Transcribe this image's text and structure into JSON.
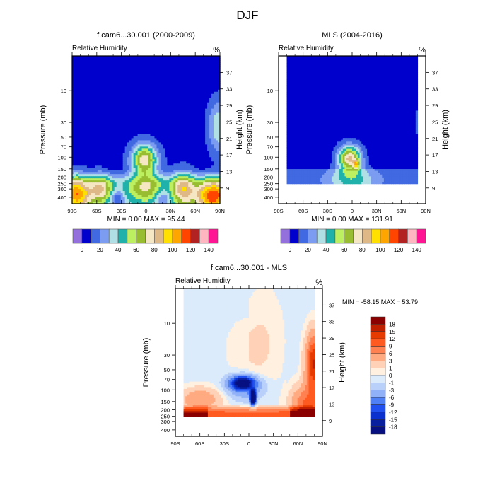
{
  "figure": {
    "title": "DJF"
  },
  "chart_data": [
    {
      "id": "model",
      "type": "heatmap",
      "title": "f.cam6...30.001 (2000-2009)",
      "left_string": "Relative Humidity",
      "units": "%",
      "xlabel": "",
      "ylabel": "Pressure (mb)",
      "ylabel_right": "Height (km)",
      "x_ticks": [
        "90S",
        "60S",
        "30S",
        "0",
        "30N",
        "60N",
        "90N"
      ],
      "x_tick_values": [
        -90,
        -60,
        -30,
        0,
        30,
        60,
        90
      ],
      "y_ticks": [
        "10",
        "30",
        "50",
        "70",
        "100",
        "150",
        "200",
        "250",
        "300",
        "400"
      ],
      "y_tick_values": [
        10,
        30,
        50,
        70,
        100,
        150,
        200,
        250,
        300,
        400
      ],
      "y_right_ticks": [
        "37",
        "33",
        "29",
        "25",
        "21",
        "17",
        "13",
        "9"
      ],
      "xlim": [
        -90,
        90
      ],
      "ylim": [
        500,
        3
      ],
      "stats": "MIN =   0.00  MAX =  95.44",
      "min": 0.0,
      "max": 95.44,
      "colorbar": {
        "labels": [
          "0",
          "20",
          "40",
          "60",
          "80",
          "100",
          "120",
          "140"
        ],
        "levels": [
          0,
          10,
          20,
          30,
          40,
          50,
          60,
          70,
          80,
          90,
          100,
          110,
          120,
          130,
          140
        ],
        "colors": [
          "#9370db",
          "#0000cd",
          "#4169e1",
          "#7b9cf0",
          "#b0e0e6",
          "#20b2aa",
          "#bdf060",
          "#98bd30",
          "#f5e6c4",
          "#deb887",
          "#ffe000",
          "#ffa500",
          "#ff4500",
          "#b22222",
          "#ffb6c1",
          "#ff1493"
        ]
      },
      "features": [
        {
          "name": "background-dry",
          "value": 5
        },
        {
          "name": "equatorial-moist-core",
          "lat": 0,
          "pressure": 100,
          "value": 75
        },
        {
          "name": "north-pole-upper-moist",
          "lat": 85,
          "pressure": 30,
          "value": 35
        },
        {
          "name": "north-mid-lat-lower-moist",
          "lat": 80,
          "pressure": 350,
          "value": 92
        },
        {
          "name": "south-lower-moist",
          "lat": -85,
          "pressure": 350,
          "value": 82
        }
      ]
    },
    {
      "id": "obs",
      "type": "heatmap",
      "title": "MLS (2004-2016)",
      "left_string": "Relative Humidity",
      "units": "%",
      "ylabel": "Pressure (mb)",
      "ylabel_right": "Height (km)",
      "x_ticks": [
        "90S",
        "60S",
        "30S",
        "0",
        "30N",
        "60N",
        "90N"
      ],
      "y_ticks": [
        "10",
        "30",
        "50",
        "70",
        "100",
        "150",
        "200",
        "250",
        "300",
        "400"
      ],
      "y_right_ticks": [
        "37",
        "33",
        "29",
        "25",
        "21",
        "17",
        "13",
        "9"
      ],
      "xlim": [
        -90,
        90
      ],
      "data_lat_range": [
        -80,
        80
      ],
      "data_pressure_bottom": 250,
      "stats": "MIN =   0.00  MAX = 131.91",
      "min": 0.0,
      "max": 131.91,
      "colorbar": {
        "labels": [
          "0",
          "20",
          "40",
          "60",
          "80",
          "100",
          "120",
          "140"
        ],
        "colors": [
          "#9370db",
          "#0000cd",
          "#4169e1",
          "#7b9cf0",
          "#b0e0e6",
          "#20b2aa",
          "#bdf060",
          "#98bd30",
          "#f5e6c4",
          "#deb887",
          "#ffe000",
          "#ffa500",
          "#ff4500",
          "#b22222",
          "#ffb6c1",
          "#ff1493"
        ]
      },
      "features": [
        {
          "name": "background-dry",
          "value": 5
        },
        {
          "name": "equatorial-moist-core",
          "lat": 0,
          "pressure": 100,
          "value": 85
        },
        {
          "name": "monsoon-peak",
          "lat": 5,
          "pressure": 130,
          "value": 131.91
        }
      ]
    },
    {
      "id": "diff",
      "type": "heatmap",
      "title": "f.cam6...30.001 - MLS",
      "left_string": "Relative Humidity",
      "units": "%",
      "ylabel": "Pressure (mb)",
      "ylabel_right": "Height (km)",
      "x_ticks": [
        "90S",
        "60S",
        "30S",
        "0",
        "30N",
        "60N",
        "90N"
      ],
      "y_ticks": [
        "10",
        "30",
        "50",
        "70",
        "100",
        "150",
        "200",
        "250",
        "300",
        "400"
      ],
      "y_right_ticks": [
        "37",
        "33",
        "29",
        "25",
        "21",
        "17",
        "13",
        "9"
      ],
      "xlim": [
        -90,
        90
      ],
      "data_lat_range": [
        -80,
        80
      ],
      "data_pressure_bottom": 250,
      "stats": "MIN = -58.15  MAX =  53.79",
      "min": -58.15,
      "max": 53.79,
      "colorbar": {
        "labels": [
          "18",
          "15",
          "12",
          "9",
          "6",
          "3",
          "1",
          "0",
          "-1",
          "-3",
          "-6",
          "-9",
          "-12",
          "-15",
          "-18"
        ],
        "colors": [
          "#8b0000",
          "#c02000",
          "#e63a00",
          "#ff5a20",
          "#ff8050",
          "#ffaa80",
          "#ffd2b8",
          "#fff0e0",
          "#dcebfb",
          "#b8d0fa",
          "#90b0f8",
          "#5080f5",
          "#2050f0",
          "#0a30d0",
          "#0820a0",
          "#061080"
        ]
      },
      "contour_labels": [
        "0",
        "0",
        "0",
        "0",
        "0",
        "3",
        "3",
        "3",
        "3",
        "15"
      ],
      "features": [
        {
          "name": "upper-negative",
          "value": -0.5
        },
        {
          "name": "central-positive",
          "value": 0.5
        },
        {
          "name": "tropopause-dry-bias",
          "lat": -10,
          "pressure": 80,
          "value": -18
        },
        {
          "name": "monsoon-dry-bias",
          "lat": 5,
          "pressure": 130,
          "value": -58.15
        },
        {
          "name": "lower-moist-bias",
          "value": 18
        }
      ]
    }
  ]
}
